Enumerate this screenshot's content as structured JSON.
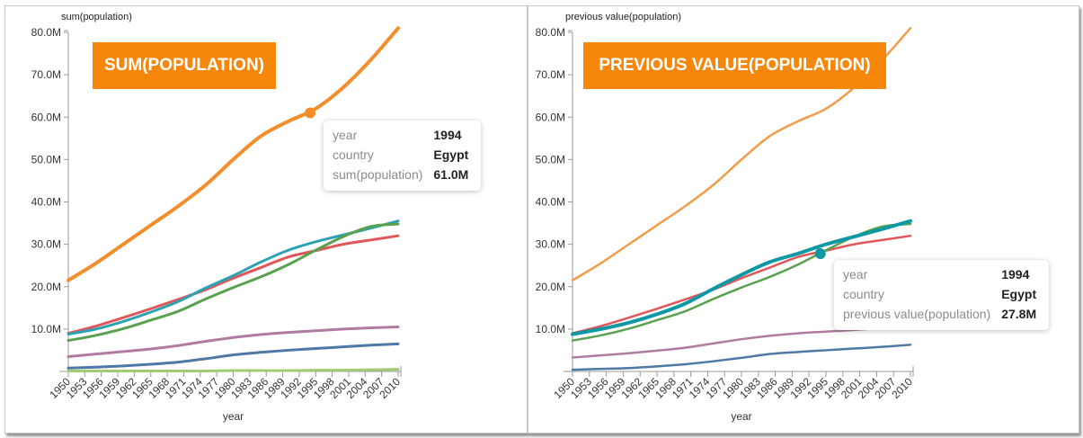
{
  "chart_data": [
    {
      "type": "line",
      "title": "SUM(POPULATION)",
      "ylabel": "sum(population)",
      "xlabel": "year",
      "ylim": [
        0,
        80000000
      ],
      "yticks": [
        "80.0M",
        "70.0M",
        "60.0M",
        "50.0M",
        "40.0M",
        "30.0M",
        "20.0M",
        "10.0M"
      ],
      "ytick_values": [
        80000000,
        70000000,
        60000000,
        50000000,
        40000000,
        30000000,
        20000000,
        10000000
      ],
      "xlim": [
        1950,
        2010
      ],
      "xticks": [
        "1950",
        "1953",
        "1956",
        "1959",
        "1962",
        "1965",
        "1968",
        "1971",
        "1974",
        "1977",
        "1980",
        "1983",
        "1986",
        "1989",
        "1992",
        "1995",
        "1998",
        "2001",
        "2004",
        "2007",
        "2010"
      ],
      "x": [
        1950,
        1955,
        1960,
        1965,
        1970,
        1975,
        1980,
        1985,
        1990,
        1995,
        2000,
        2005,
        2010
      ],
      "highlight_series": "Egypt",
      "series": [
        {
          "name": "Egypt",
          "color": "#f28e2b",
          "width": 4,
          "values": [
            21.5,
            25.5,
            30,
            34.5,
            39,
            44,
            50,
            55.5,
            59,
            62,
            67,
            73.5,
            81
          ]
        },
        {
          "name": "series-red",
          "color": "#e15759",
          "width": 3,
          "values": [
            9,
            10.7,
            12.7,
            14.8,
            17,
            19.3,
            22,
            24.5,
            27,
            28.5,
            30,
            31,
            32
          ]
        },
        {
          "name": "series-teal",
          "color": "#2ca3b5",
          "width": 3,
          "values": [
            8.8,
            10,
            11.8,
            14,
            16.5,
            19.7,
            22.6,
            25.8,
            28.6,
            30.6,
            32.2,
            33.8,
            35.5
          ]
        },
        {
          "name": "series-green",
          "color": "#59a14f",
          "width": 3,
          "values": [
            7.3,
            8.5,
            10.1,
            12.1,
            14.2,
            17.1,
            19.8,
            22.3,
            25.2,
            28.6,
            31.8,
            34.2,
            34.8
          ]
        },
        {
          "name": "series-purple",
          "color": "#b07aa1",
          "width": 3,
          "values": [
            3.5,
            4.1,
            4.7,
            5.3,
            6.1,
            7.1,
            8,
            8.7,
            9.2,
            9.6,
            10,
            10.3,
            10.5
          ]
        },
        {
          "name": "series-blue",
          "color": "#4e79a7",
          "width": 3,
          "values": [
            0.8,
            1,
            1.3,
            1.7,
            2.2,
            3,
            3.9,
            4.5,
            5,
            5.4,
            5.8,
            6.2,
            6.5
          ]
        },
        {
          "name": "series-lime",
          "color": "#a0cd74",
          "width": 3,
          "values": [
            0.1,
            0.1,
            0.1,
            0.1,
            0.1,
            0.1,
            0.2,
            0.2,
            0.2,
            0.3,
            0.3,
            0.4,
            0.5
          ]
        }
      ],
      "highlight_point": {
        "year": 1994,
        "value": 61.0
      },
      "tooltip": {
        "rows": [
          {
            "key": "year",
            "value": "1994"
          },
          {
            "key": "country",
            "value": "Egypt"
          },
          {
            "key": "sum(population)",
            "value": "61.0M"
          }
        ]
      }
    },
    {
      "type": "line",
      "title": "PREVIOUS VALUE(POPULATION)",
      "ylabel": "previous value(population)",
      "xlabel": "year",
      "ylim": [
        0,
        80000000
      ],
      "yticks": [
        "80.0M",
        "70.0M",
        "60.0M",
        "50.0M",
        "40.0M",
        "30.0M",
        "20.0M",
        "10.0M"
      ],
      "ytick_values": [
        80000000,
        70000000,
        60000000,
        50000000,
        40000000,
        30000000,
        20000000,
        10000000
      ],
      "xlim": [
        1950,
        2010
      ],
      "xticks": [
        "1950",
        "1953",
        "1956",
        "1959",
        "1962",
        "1965",
        "1968",
        "1971",
        "1974",
        "1977",
        "1980",
        "1983",
        "1986",
        "1989",
        "1992",
        "1995",
        "1998",
        "2001",
        "2004",
        "2007",
        "2010"
      ],
      "x": [
        1950,
        1955,
        1960,
        1965,
        1970,
        1975,
        1980,
        1985,
        1990,
        1995,
        2000,
        2005,
        2010
      ],
      "highlight_series": "Egypt",
      "series": [
        {
          "name": "series-orange",
          "color": "#f29c4a",
          "width": 2.5,
          "values": [
            21.5,
            25.5,
            30,
            34.5,
            39,
            44,
            50,
            55.5,
            59,
            62,
            67,
            73.5,
            81
          ]
        },
        {
          "name": "series-red",
          "color": "#e15759",
          "width": 2.5,
          "values": [
            9,
            10.7,
            12.7,
            14.8,
            17,
            19.3,
            22,
            24.5,
            27,
            28.5,
            30,
            31,
            32
          ]
        },
        {
          "name": "Egypt",
          "color": "#0e97a4",
          "width": 4,
          "values": [
            8.8,
            10,
            11.5,
            13.5,
            16,
            19.5,
            22.8,
            25.8,
            27.8,
            30,
            31.8,
            33.6,
            35.5
          ]
        },
        {
          "name": "series-green",
          "color": "#59a14f",
          "width": 2.5,
          "values": [
            7.3,
            8.5,
            10.1,
            12.1,
            14.2,
            17.1,
            19.8,
            22.3,
            25.2,
            28.6,
            31.8,
            34.2,
            34.8
          ]
        },
        {
          "name": "series-purple",
          "color": "#b07aa1",
          "width": 2.5,
          "values": [
            3.3,
            3.8,
            4.3,
            4.9,
            5.6,
            6.6,
            7.6,
            8.4,
            9,
            9.4,
            9.8,
            10.2,
            10.5
          ]
        },
        {
          "name": "series-blue",
          "color": "#4e79a7",
          "width": 2.5,
          "values": [
            0.4,
            0.6,
            0.8,
            1.2,
            1.7,
            2.4,
            3.2,
            4.1,
            4.6,
            5,
            5.4,
            5.8,
            6.3
          ]
        }
      ],
      "highlight_point": {
        "year": 1994,
        "value": 27.8
      },
      "tooltip": {
        "rows": [
          {
            "key": "year",
            "value": "1994"
          },
          {
            "key": "country",
            "value": "Egypt"
          },
          {
            "key": "previous value(population)",
            "value": "27.8M"
          }
        ]
      }
    }
  ]
}
